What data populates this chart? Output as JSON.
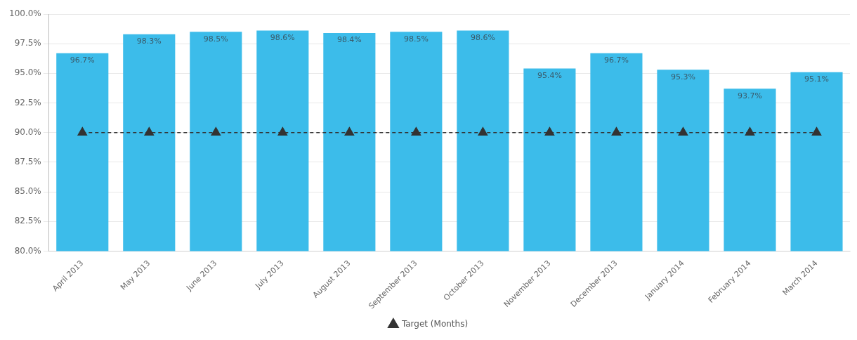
{
  "chart_data": {
    "type": "bar",
    "categories": [
      "April 2013",
      "May 2013",
      "June 2013",
      "July 2013",
      "August 2013",
      "September 2013",
      "October 2013",
      "November 2013",
      "December 2013",
      "January 2014",
      "February 2014",
      "March 2014"
    ],
    "series": [
      {
        "color": "#3cbcea",
        "values": [
          96.7,
          98.3,
          98.5,
          98.6,
          98.4,
          98.5,
          98.6,
          95.4,
          96.7,
          95.3,
          93.7,
          95.1
        ],
        "value_labels": [
          "96.7%",
          "98.3%",
          "98.5%",
          "98.6%",
          "98.4%",
          "98.5%",
          "98.6%",
          "95.4%",
          "96.7%",
          "95.3%",
          "93.7%",
          "95.1%"
        ]
      },
      {
        "type": "line",
        "name": "Target (Months)",
        "color": "#333333",
        "values": [
          90,
          90,
          90,
          90,
          90,
          90,
          90,
          90,
          90,
          90,
          90,
          90
        ],
        "marker": "triangle",
        "line_style": "dashed"
      }
    ],
    "ylim": [
      80,
      100
    ],
    "yticks": [
      {
        "value": 80,
        "label": "80.0%"
      },
      {
        "value": 82.5,
        "label": "82.5%"
      },
      {
        "value": 85,
        "label": "85.0%"
      },
      {
        "value": 87.5,
        "label": "87.5%"
      },
      {
        "value": 90,
        "label": "90.0%"
      },
      {
        "value": 92.5,
        "label": "92.5%"
      },
      {
        "value": 95,
        "label": "95.0%"
      },
      {
        "value": 97.5,
        "label": "97.5%"
      },
      {
        "value": 100,
        "label": "100.0%"
      }
    ],
    "grid": "y",
    "legend": "bottom"
  }
}
